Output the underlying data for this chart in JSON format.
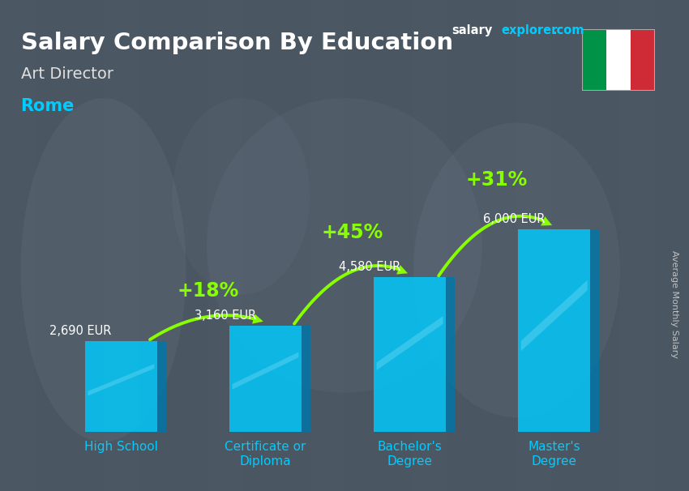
{
  "title": "Salary Comparison By Education",
  "subtitle": "Art Director",
  "location": "Rome",
  "ylabel": "Average Monthly Salary",
  "categories": [
    "High School",
    "Certificate or\nDiploma",
    "Bachelor's\nDegree",
    "Master's\nDegree"
  ],
  "values": [
    2690,
    3160,
    4580,
    6000
  ],
  "value_labels": [
    "2,690 EUR",
    "3,160 EUR",
    "4,580 EUR",
    "6,000 EUR"
  ],
  "pct_changes": [
    "+18%",
    "+45%",
    "+31%"
  ],
  "bar_color": "#00ccff",
  "bar_dark": "#0077aa",
  "bar_alpha": 0.82,
  "bg_color": "#4a5560",
  "title_color": "#ffffff",
  "subtitle_color": "#e0e0e0",
  "location_color": "#00ccff",
  "value_label_color": "#ffffff",
  "pct_color": "#88ff00",
  "arrow_color": "#88ff00",
  "xtick_color": "#00ccff",
  "ylabel_color": "#cccccc",
  "ylim": [
    0,
    8000
  ],
  "flag_green": "#009246",
  "flag_white": "#ffffff",
  "flag_red": "#ce2b37",
  "brand_salary_color": "#ffffff",
  "brand_explorer_color": "#00ccff",
  "bar_width": 0.5,
  "x_positions": [
    0,
    1,
    2,
    3
  ]
}
